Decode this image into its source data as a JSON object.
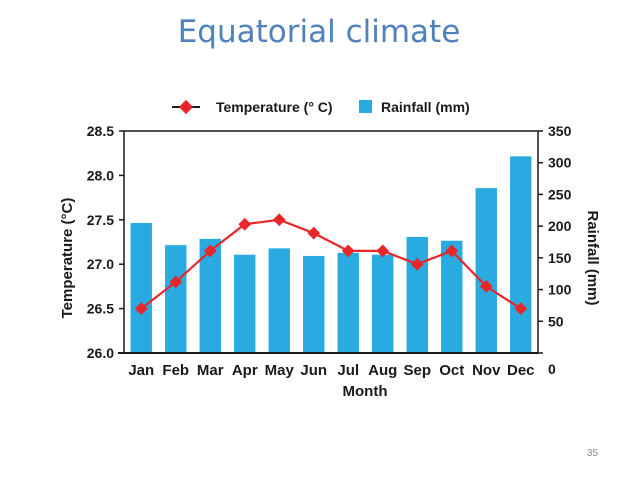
{
  "slide": {
    "title": "Equatorial climate",
    "page_number": "35"
  },
  "colors": {
    "title": "#4f81bd",
    "bar": "#29abe2",
    "line": "#e8262a",
    "axis": "#1a1a1a"
  },
  "chart_data": {
    "type": "bar+line",
    "categories": [
      "Jan",
      "Feb",
      "Mar",
      "Apr",
      "May",
      "Jun",
      "Jul",
      "Aug",
      "Sep",
      "Oct",
      "Nov",
      "Dec"
    ],
    "series": [
      {
        "name": "Rainfall (mm)",
        "type": "bar",
        "axis": "right",
        "values": [
          205,
          170,
          180,
          155,
          165,
          153,
          158,
          155,
          183,
          177,
          260,
          310
        ]
      },
      {
        "name": "Temperature (° C)",
        "type": "line",
        "axis": "left",
        "values": [
          26.5,
          26.8,
          27.15,
          27.45,
          27.5,
          27.35,
          27.15,
          27.15,
          27.0,
          27.15,
          26.75,
          26.5
        ]
      }
    ],
    "legend": [
      "Temperature (° C)",
      "Rainfall (mm)"
    ],
    "xlabel": "Month",
    "ylabel_left": "Temperature (°C)",
    "ylabel_right": "Rainfall (mm)",
    "ylim_left": [
      26.0,
      28.5
    ],
    "ylim_right": [
      0,
      350
    ],
    "yticks_left": [
      "28.5",
      "28.0",
      "27.5",
      "27.0",
      "26.5",
      "26.0"
    ],
    "yticks_right": [
      "350",
      "300",
      "250",
      "200",
      "150",
      "100",
      "50",
      "0"
    ]
  }
}
